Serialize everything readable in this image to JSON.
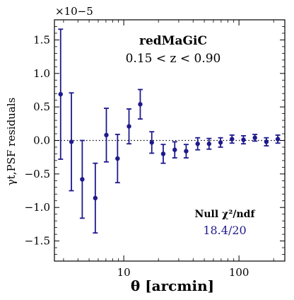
{
  "chart_data": {
    "type": "scatter",
    "title": "redMaGiC",
    "subtitle": "0.15 < z < 0.90",
    "xlabel": "θ [arcmin]",
    "ylabel": "γt,PSF residuals",
    "y_multiplier": "×10−5",
    "xscale": "log",
    "xlim": [
      2.5,
      250
    ],
    "ylim": [
      -1.8,
      1.8
    ],
    "x_ticks": [
      10,
      100
    ],
    "x_tick_labels": [
      "10",
      "100"
    ],
    "y_ticks": [
      -1.5,
      -1.0,
      -0.5,
      0.0,
      0.5,
      1.0,
      1.5
    ],
    "y_tick_labels": [
      "−1.5",
      "−1.0",
      "−0.5",
      "0.0",
      "0.5",
      "1.0",
      "1.5"
    ],
    "grid": false,
    "reference_line": 0,
    "annotation_label": "Null χ²/ndf",
    "annotation_value": "18.4/20",
    "series": [
      {
        "marker_color": "#1f1a8c",
        "x": [
          2.83,
          3.51,
          4.36,
          5.66,
          7.06,
          8.83,
          11.1,
          13.9,
          17.5,
          22.0,
          27.7,
          34.8,
          43.8,
          55.0,
          69.2,
          87.0,
          109.4,
          137.5,
          172.9,
          217.4
        ],
        "y": [
          0.69,
          -0.02,
          -0.58,
          -0.86,
          0.08,
          -0.27,
          0.21,
          0.54,
          -0.03,
          -0.2,
          -0.14,
          -0.16,
          -0.05,
          -0.05,
          -0.03,
          0.02,
          0.01,
          0.04,
          -0.02,
          0.02
        ],
        "yerr": [
          0.97,
          0.73,
          0.58,
          0.52,
          0.4,
          0.36,
          0.26,
          0.22,
          0.16,
          0.14,
          0.12,
          0.1,
          0.09,
          0.08,
          0.07,
          0.06,
          0.06,
          0.05,
          0.06,
          0.06
        ]
      }
    ]
  }
}
